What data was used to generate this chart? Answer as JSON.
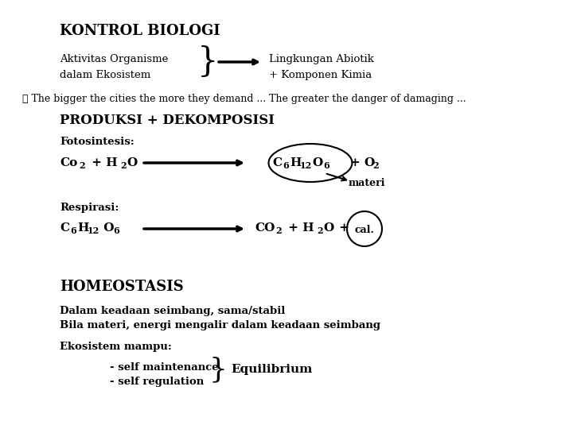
{
  "bg_color": "#ffffff",
  "title": "KONTROL BIOLOGI",
  "bullet_text": "❖ The bigger the cities the more they demand ... The greater the danger of damaging ...",
  "produksi_title": "PRODUKSI + DEKOMPOSISI",
  "foto_label": "Fotosintesis:",
  "resp_label": "Respirasi:",
  "homeostasis_title": "HOMEOSTASIS",
  "dalam_text": "Dalam keadaan seimbang, sama/stabil",
  "bila_text": "Bila materi, energi mengalir dalam keadaan seimbang",
  "ekosistem_text": "Ekosistem mampu:",
  "self_maint": "- self maintenance",
  "self_reg": "- self regulation",
  "equil_text": "Equilibrium",
  "akt_line1": "Aktivitas Organisme",
  "akt_line2": "dalam Ekosistem",
  "lingk_line1": "Lingkungan Abiotik",
  "lingk_line2": "+ Komponen Kimia"
}
